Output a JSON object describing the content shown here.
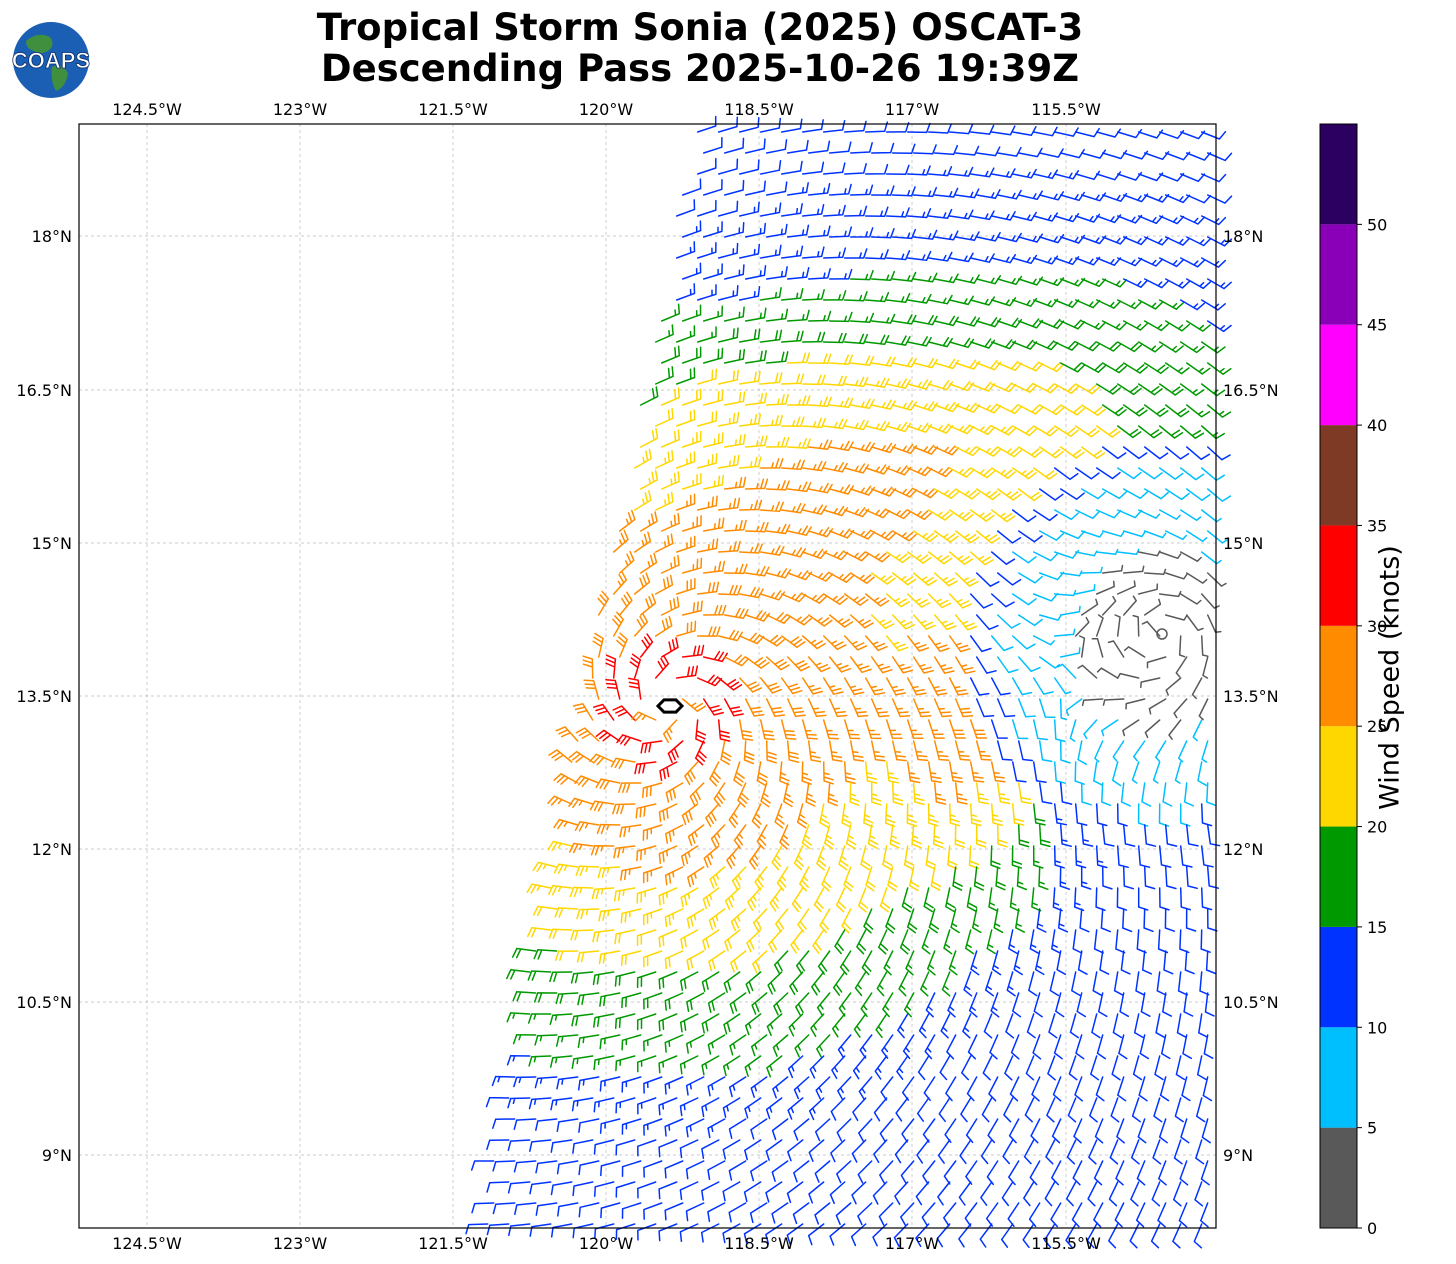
{
  "title_line1": "Tropical Storm Sonia (2025) OSCAT-3",
  "title_line2": "Descending Pass 2025-10-26 19:39Z",
  "logo_text": "COAPS",
  "map": {
    "lon_ticks": [
      "124.5°W",
      "123°W",
      "121.5°W",
      "120°W",
      "118.5°W",
      "117°W",
      "115.5°W"
    ],
    "lat_ticks": [
      "18°N",
      "16.5°N",
      "15°N",
      "13.5°N",
      "12°N",
      "10.5°N",
      "9°N"
    ],
    "storm_center_marker": "hexagon",
    "low_wind_center_marker": "circle"
  },
  "colorbar": {
    "label": "Wind Speed (knots)",
    "tick_labels": [
      "0",
      "5",
      "10",
      "15",
      "20",
      "25",
      "30",
      "35",
      "40",
      "45",
      "50"
    ],
    "bins": [
      {
        "min": 0,
        "max": 5,
        "color": "#595959"
      },
      {
        "min": 5,
        "max": 10,
        "color": "#00bfff"
      },
      {
        "min": 10,
        "max": 15,
        "color": "#0033ff"
      },
      {
        "min": 15,
        "max": 20,
        "color": "#009900"
      },
      {
        "min": 20,
        "max": 25,
        "color": "#ffd700"
      },
      {
        "min": 25,
        "max": 30,
        "color": "#ff8c00"
      },
      {
        "min": 30,
        "max": 35,
        "color": "#ff0000"
      },
      {
        "min": 35,
        "max": 40,
        "color": "#7f3a26"
      },
      {
        "min": 40,
        "max": 45,
        "color": "#ff00ff"
      },
      {
        "min": 45,
        "max": 50,
        "color": "#8a00b8"
      },
      {
        "min": 50,
        "max": 55,
        "color": "#2b0060"
      }
    ]
  }
}
